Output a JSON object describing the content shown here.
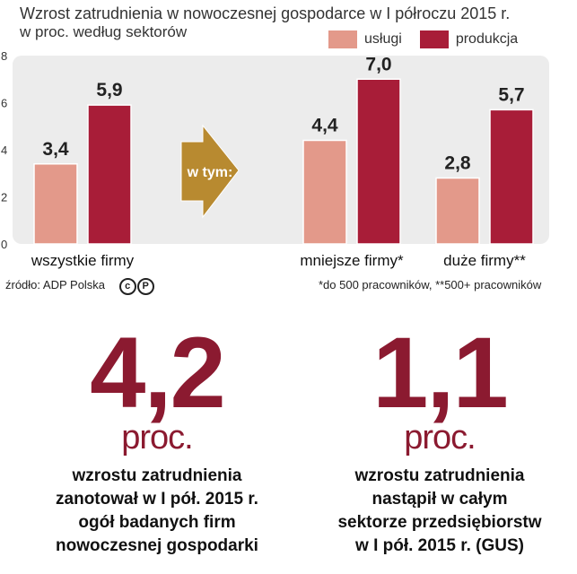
{
  "header": {
    "title": "Wzrost zatrudnienia w nowoczesnej gospodarce w I półroczu 2015 r.",
    "subtitle": "w proc. według sektorów"
  },
  "colors": {
    "uslugi": "#e3998a",
    "produkcja": "#a81d38",
    "arrow": "#b88a30",
    "panel": "#ececec",
    "accent": "#8b1a30"
  },
  "chart_data": {
    "type": "bar",
    "categories": [
      "wszystkie firmy",
      "mniejsze firmy*",
      "duże firmy**"
    ],
    "series": [
      {
        "name": "usługi",
        "values": [
          3.4,
          4.4,
          2.8
        ]
      },
      {
        "name": "produkcja",
        "values": [
          5.9,
          7.0,
          5.7
        ]
      }
    ],
    "value_labels": [
      [
        "3,4",
        "5,9"
      ],
      [
        "4,4",
        "7,0"
      ],
      [
        "2,8",
        "5,7"
      ]
    ],
    "yticks": [
      "0",
      "2",
      "4",
      "6",
      "8"
    ],
    "ylim": [
      0,
      8
    ],
    "arrow_label": "w tym:",
    "legend_position": "top-right"
  },
  "footer": {
    "source": "źródło: ADP Polska",
    "note": "*do 500 pracowników, **500+ pracowników"
  },
  "stats": [
    {
      "value": "4,2",
      "unit": "proc.",
      "lines": [
        "wzrostu  zatrudnienia",
        "zanotował  w I pół. 2015 r.",
        "ogół badanych firm",
        "nowoczesnej gospodarki"
      ]
    },
    {
      "value": "1,1",
      "unit": "proc.",
      "lines": [
        "wzrostu  zatrudnienia",
        "nastąpił  w całym",
        "sektorze przedsiębiorstw",
        "w I pół. 2015 r. (GUS)"
      ]
    }
  ]
}
